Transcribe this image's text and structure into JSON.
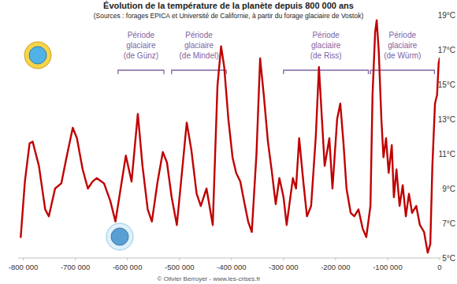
{
  "chart_data": {
    "type": "line",
    "title": "Évolution de la température de la planète depuis 800 000 ans",
    "subtitle": "(Sources : forages EPICA et Université de Californie, à partir du forage glaciaire de Vostok)",
    "footer": "© Olivier Berruyer - www.les-crises.fr",
    "color": "#c00000",
    "grid": false,
    "x": [
      -805000,
      -797000,
      -788000,
      -782000,
      -770000,
      -758000,
      -751000,
      -739000,
      -727000,
      -717000,
      -705000,
      -697000,
      -686000,
      -676000,
      -667000,
      -659000,
      -645000,
      -633000,
      -623000,
      -613000,
      -603000,
      -592000,
      -580000,
      -571000,
      -561000,
      -553000,
      -542000,
      -532000,
      -524000,
      -515000,
      -505000,
      -495000,
      -486000,
      -477000,
      -467000,
      -459000,
      -448000,
      -436000,
      -427000,
      -420000,
      -414000,
      -406000,
      -398000,
      -391000,
      -383000,
      -376000,
      -368000,
      -361000,
      -352000,
      -345000,
      -338000,
      -330000,
      -323000,
      -315000,
      -308000,
      -300000,
      -294000,
      -282000,
      -276000,
      -270000,
      -262000,
      -255000,
      -247000,
      -238000,
      -232000,
      -221000,
      -212000,
      -206000,
      -197000,
      -191000,
      -185000,
      -179000,
      -171000,
      -164000,
      -156000,
      -148000,
      -141000,
      -133000,
      -129000,
      -124000,
      -121000,
      -117000,
      -112000,
      -108000,
      -103000,
      -98000,
      -92000,
      -88000,
      -83000,
      -77000,
      -71000,
      -65000,
      -59000,
      -53000,
      -45000,
      -38000,
      -30000,
      -23000,
      -18000,
      -14000,
      -9000,
      -5000,
      -2000,
      0
    ],
    "values": [
      6.2,
      9.4,
      11.6,
      11.7,
      10.3,
      7.8,
      7.4,
      9.0,
      9.3,
      10.8,
      12.5,
      11.9,
      10.1,
      9.0,
      9.4,
      9.6,
      9.3,
      8.3,
      7.1,
      9.0,
      10.9,
      9.4,
      13.3,
      10.3,
      7.8,
      7.1,
      9.4,
      11.1,
      10.5,
      8.5,
      6.9,
      10.0,
      12.8,
      11.2,
      8.7,
      8.0,
      9.0,
      6.9,
      14.9,
      17.2,
      16.0,
      13.0,
      10.8,
      9.9,
      9.4,
      8.3,
      7.1,
      6.5,
      11.0,
      16.5,
      14.4,
      11.7,
      10.1,
      8.1,
      9.6,
      8.5,
      6.9,
      9.6,
      9.0,
      11.9,
      9.4,
      7.4,
      8.0,
      12.0,
      16.0,
      10.3,
      11.9,
      9.0,
      13.0,
      13.9,
      11.7,
      9.0,
      7.6,
      7.4,
      7.8,
      6.7,
      6.2,
      8.0,
      14.4,
      18.0,
      18.7,
      16.9,
      13.0,
      10.8,
      11.9,
      9.9,
      11.5,
      8.5,
      10.1,
      8.0,
      9.2,
      7.4,
      8.7,
      7.6,
      8.0,
      6.9,
      6.5,
      5.3,
      5.8,
      10.3,
      13.9,
      14.4,
      16.2,
      16.5
    ],
    "xlim": [
      -810000,
      0
    ],
    "xticks": [
      {
        "value": -800000,
        "label": "-800 000"
      },
      {
        "value": -700000,
        "label": "-700 000"
      },
      {
        "value": -600000,
        "label": "-600 000"
      },
      {
        "value": -500000,
        "label": "-500 000"
      },
      {
        "value": -400000,
        "label": "-400 000"
      },
      {
        "value": -300000,
        "label": "-300 000"
      },
      {
        "value": -200000,
        "label": "-200 000"
      },
      {
        "value": -100000,
        "label": "-100 000"
      },
      0
    ],
    "ylim": [
      5,
      19
    ],
    "yticks": [
      {
        "value": 5,
        "label": "5°C"
      },
      {
        "value": 7,
        "label": "7°C"
      },
      {
        "value": 9,
        "label": "9°C"
      },
      {
        "value": 11,
        "label": "11°C"
      },
      {
        "value": 13,
        "label": "13°C"
      },
      {
        "value": 15,
        "label": "15°C"
      },
      {
        "value": 17,
        "label": "17°C"
      },
      {
        "value": 19,
        "label": "19°C"
      }
    ],
    "annotations": [
      {
        "lines": [
          "Période",
          "glaciaire",
          "(de Günz)"
        ],
        "span": [
          -618000,
          -530000
        ]
      },
      {
        "lines": [
          "Période",
          "glaciaire",
          "(de Mindel)"
        ],
        "span": [
          -515000,
          -410000
        ]
      },
      {
        "lines": [
          "Période",
          "glaciaire",
          "(de Riss)"
        ],
        "span": [
          -300000,
          -137000
        ]
      },
      {
        "lines": [
          "Période",
          "glaciaire",
          "(de Würm)"
        ],
        "span": [
          -133000,
          -10000
        ]
      }
    ]
  }
}
